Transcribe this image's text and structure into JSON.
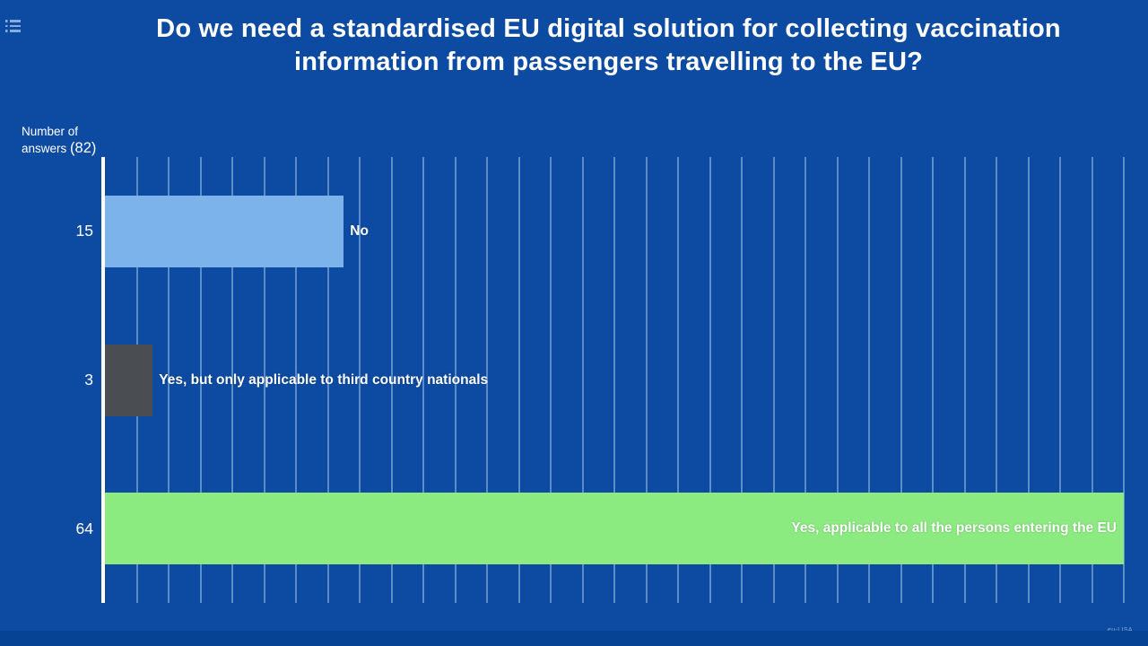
{
  "chart_data": {
    "type": "bar",
    "orientation": "horizontal",
    "title": "Do we need a standardised EU digital solution for collecting vaccination information from passengers travelling to the EU?",
    "ylabel": "Number of answers (82)",
    "total_answers": 82,
    "categories": [
      "No",
      "Yes, but only applicable to third country nationals",
      "Yes, applicable to all the persons entering the EU"
    ],
    "values": [
      15,
      3,
      64
    ],
    "bar_colors": [
      "#7cb3ea",
      "#4a4e53",
      "#8ceb80"
    ],
    "label_placement": [
      "outside",
      "outside",
      "inside"
    ],
    "xlim": [
      0,
      64
    ],
    "gridline_interval": 2,
    "grid": true,
    "legend": false
  },
  "y_axis_label": {
    "line1": "Number of",
    "line2_prefix": "answers ",
    "total": "(82)"
  },
  "watermark": "eu-LISA",
  "colors": {
    "background": "#0c4ba1",
    "footer_strip": "#064394",
    "gridline": "#6f9dd6",
    "axis_line": "#ffffff",
    "text": "#ffffff",
    "menu_icon": "#86aedd"
  }
}
